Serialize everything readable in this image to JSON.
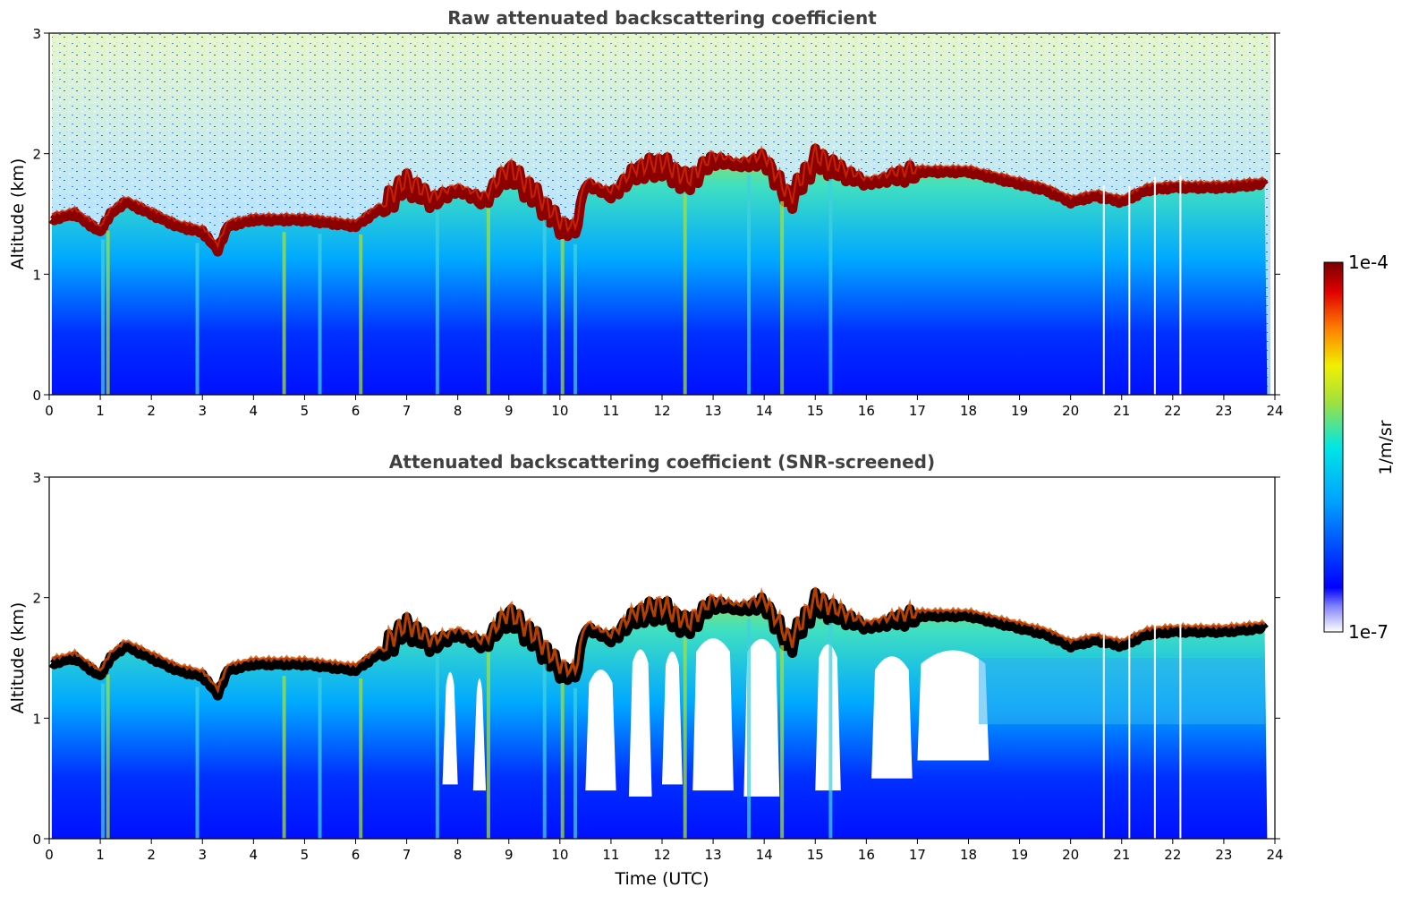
{
  "colors": {
    "colormap": [
      "#ffffff",
      "#0000ff",
      "#00a0ff",
      "#00e6e6",
      "#a0e040",
      "#f0f000",
      "#ff8000",
      "#e00000",
      "#780000"
    ],
    "pbl_screened": "#000000"
  },
  "chart_data": [
    {
      "type": "heatmap",
      "title": "Raw attenuated backscattering coefficient",
      "xlabel": "",
      "ylabel": "Altitude (km)",
      "xlim": [
        0,
        24
      ],
      "ylim": [
        0,
        3
      ],
      "x_ticks": [
        "0",
        "1",
        "2",
        "3",
        "4",
        "5",
        "6",
        "7",
        "8",
        "9",
        "10",
        "11",
        "12",
        "13",
        "14",
        "15",
        "16",
        "17",
        "18",
        "19",
        "20",
        "21",
        "22",
        "23",
        "24"
      ],
      "y_ticks": [
        "0",
        "1",
        "2",
        "3"
      ],
      "layer_top_km": {
        "time_utc": [
          0,
          0.5,
          1.0,
          1.2,
          1.5,
          2.0,
          2.5,
          3.0,
          3.3,
          3.5,
          4.0,
          5.0,
          6.0,
          6.5,
          7.0,
          7.5,
          8.0,
          8.5,
          9.0,
          9.5,
          10.0,
          10.3,
          10.5,
          11.0,
          11.5,
          12.0,
          12.5,
          13.0,
          13.5,
          14.0,
          14.5,
          15.0,
          15.5,
          16.0,
          16.5,
          17.0,
          18.0,
          19.0,
          19.5,
          20.0,
          20.5,
          21.0,
          21.5,
          22.0,
          23.0,
          23.8
        ],
        "altitude_km": [
          1.45,
          1.5,
          1.35,
          1.5,
          1.6,
          1.5,
          1.4,
          1.35,
          1.2,
          1.4,
          1.45,
          1.45,
          1.4,
          1.55,
          1.75,
          1.6,
          1.7,
          1.6,
          1.85,
          1.65,
          1.4,
          1.35,
          1.75,
          1.65,
          1.85,
          1.9,
          1.75,
          1.95,
          1.9,
          1.95,
          1.6,
          1.95,
          1.85,
          1.75,
          1.8,
          1.85,
          1.85,
          1.75,
          1.7,
          1.6,
          1.65,
          1.6,
          1.7,
          1.72,
          1.72,
          1.75
        ]
      },
      "colorbar": {
        "label": "1/m/sr",
        "min": "1e-7",
        "max": "1e-4",
        "scale": "log"
      }
    },
    {
      "type": "heatmap",
      "title": "Attenuated backscattering coefficient (SNR-screened)",
      "xlabel": "Time (UTC)",
      "ylabel": "Altitude (km)",
      "xlim": [
        0,
        24
      ],
      "ylim": [
        0,
        3
      ],
      "x_ticks": [
        "0",
        "1",
        "2",
        "3",
        "4",
        "5",
        "6",
        "7",
        "8",
        "9",
        "10",
        "11",
        "12",
        "13",
        "14",
        "15",
        "16",
        "17",
        "18",
        "19",
        "20",
        "21",
        "22",
        "23",
        "24"
      ],
      "y_ticks": [
        "0",
        "1",
        "2",
        "3"
      ]
    }
  ]
}
